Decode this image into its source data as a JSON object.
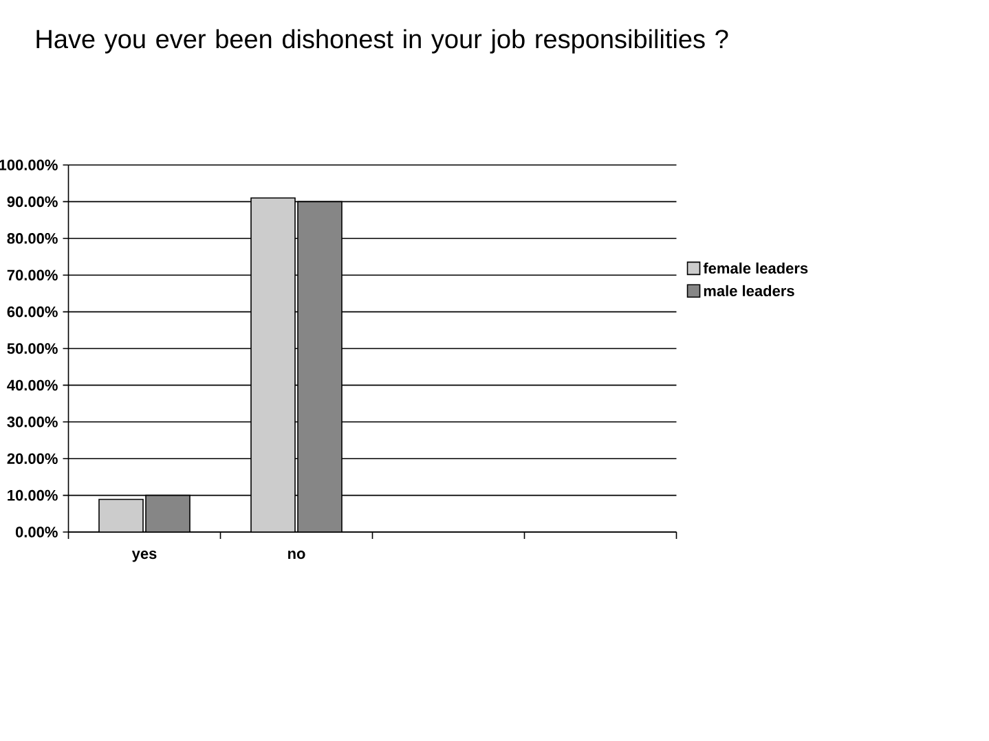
{
  "chart_data": {
    "type": "bar",
    "title": "Have you ever been dishonest in your job responsibilities ?",
    "categories": [
      "yes",
      "no",
      null,
      null
    ],
    "series": [
      {
        "name": "female leaders",
        "color": "#cccccc",
        "values": [
          8.9,
          91,
          null,
          null
        ]
      },
      {
        "name": "male leaders",
        "color": "#868686",
        "values": [
          10,
          90,
          null,
          null
        ]
      }
    ],
    "ylim": [
      0,
      100
    ],
    "yticks": [
      {
        "value": 0,
        "label": "0.00%"
      },
      {
        "value": 10,
        "label": "10.00%"
      },
      {
        "value": 20,
        "label": "20.00%"
      },
      {
        "value": 30,
        "label": "30.00%"
      },
      {
        "value": 40,
        "label": "40.00%"
      },
      {
        "value": 50,
        "label": "50.00%"
      },
      {
        "value": 60,
        "label": "60.00%"
      },
      {
        "value": 70,
        "label": "70.00%"
      },
      {
        "value": 80,
        "label": "80.00%"
      },
      {
        "value": 90,
        "label": "90.00%"
      },
      {
        "value": 100,
        "label": "100.00%"
      }
    ],
    "grid": "y",
    "legend": "right"
  }
}
